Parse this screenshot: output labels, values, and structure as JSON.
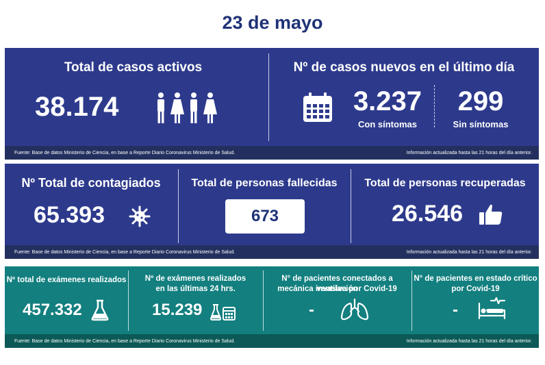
{
  "header": {
    "date": "23 de mayo"
  },
  "panel1": {
    "active": {
      "label": "Total de casos activos",
      "value": "38.174",
      "icon": "people-icon"
    },
    "new_cases": {
      "label": "Nº de casos nuevos en el último día",
      "icon": "calendar-icon",
      "with_symptoms_value": "3.237",
      "with_symptoms_label": "Con síntomas",
      "without_symptoms_value": "299",
      "without_symptoms_label": "Sin síntomas"
    },
    "footer_source": "Fuente: Base de datos Ministerio de Ciencia, en base a Reporte Diario Coronavirus Ministerio de Salud.",
    "footer_update": "Información actualizada hasta las 21 horas  del día anterior."
  },
  "panel2": {
    "infected": {
      "label": "Nº Total de contagiados",
      "value": "65.393",
      "icon": "virus-icon"
    },
    "deceased": {
      "label": "Total de personas fallecidas",
      "value": "673"
    },
    "recovered": {
      "label": "Total de personas recuperadas",
      "value": "26.546",
      "icon": "thumbs-up-icon"
    },
    "footer_source": "Fuente: Base de datos Ministerio de Ciencia, en base a Reporte Diario Coronavirus Ministerio de Salud.",
    "footer_update": "Información actualizada hasta las 21 horas  del día anterior."
  },
  "panel3": {
    "exams_total": {
      "label": "Nº total de exámenes realizados",
      "value": "457.332",
      "icon": "flask-icon"
    },
    "exams_24h": {
      "label_line1": "Nº de exámenes realizados",
      "label_line2": "en las últimas 24 hrs.",
      "value": "15.239",
      "icon": "flask-calendar-icon"
    },
    "ventilation": {
      "label_line1": "N° de pacientes conectados a ventilación",
      "label_line2": "mecánica invasiva por Covid-19",
      "value": "-",
      "icon": "lungs-icon"
    },
    "critical": {
      "label_line1": "N° de pacientes en estado crítico",
      "label_line2": "por Covid-19",
      "value": "-",
      "icon": "hospital-bed-icon"
    },
    "footer_source": "Fuente: Base de datos Ministerio de Ciencia, en base a Reporte Diario Coronavirus Ministerio de Salud.",
    "footer_update": "Información actualizada hasta las 21 horas  del día anterior."
  },
  "colors": {
    "blue_panel": "#2d3a8c",
    "teal_panel": "#137f7f",
    "title": "#1f3276"
  }
}
